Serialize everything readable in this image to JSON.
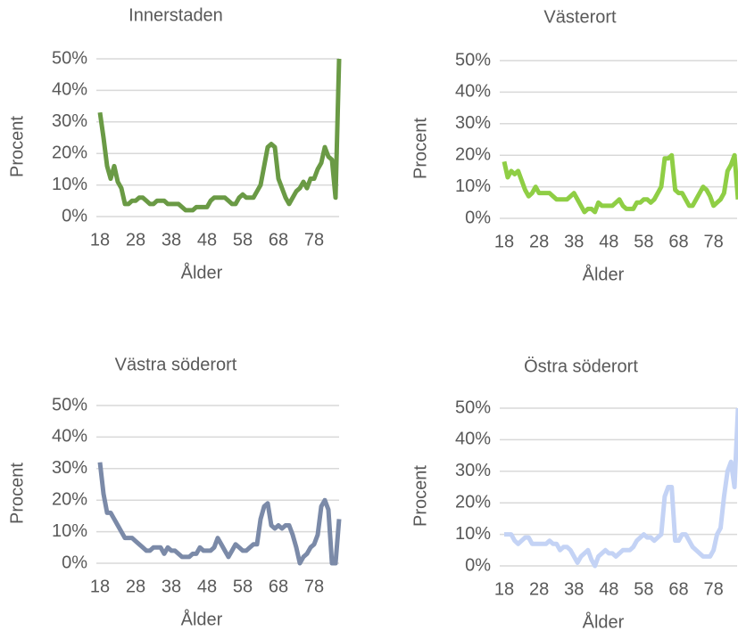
{
  "chart_data": [
    {
      "type": "line",
      "title": "Innerstaden",
      "x_label": "Ålder",
      "y_label": "Procent",
      "x": [
        18,
        19,
        20,
        21,
        22,
        23,
        24,
        25,
        26,
        27,
        28,
        29,
        30,
        31,
        32,
        33,
        34,
        35,
        36,
        37,
        38,
        39,
        40,
        41,
        42,
        43,
        44,
        45,
        46,
        47,
        48,
        49,
        50,
        51,
        52,
        53,
        54,
        55,
        56,
        57,
        58,
        59,
        60,
        61,
        62,
        63,
        64,
        65,
        66,
        67,
        68,
        69,
        70,
        71,
        72,
        73,
        74,
        75,
        76,
        77,
        78,
        79,
        80,
        81,
        82,
        83,
        84,
        85
      ],
      "series": [
        {
          "color": "#6a9a45",
          "values": [
            33,
            25,
            16,
            12,
            16,
            11,
            9,
            4,
            4,
            5,
            5,
            6,
            6,
            5,
            4,
            4,
            5,
            5,
            5,
            4,
            4,
            4,
            4,
            3,
            2,
            2,
            2,
            3,
            3,
            3,
            3,
            5,
            6,
            6,
            6,
            6,
            5,
            4,
            4,
            6,
            7,
            6,
            6,
            6,
            8,
            10,
            16,
            22,
            23,
            22,
            12,
            9,
            6,
            4,
            6,
            8,
            9,
            11,
            9,
            12,
            12,
            15,
            17,
            22,
            19,
            18,
            6,
            50
          ]
        }
      ],
      "xlim": [
        18,
        85
      ],
      "xticks": [
        18,
        28,
        38,
        48,
        58,
        68,
        78
      ],
      "ylim": [
        0,
        50
      ],
      "yticks": [
        {
          "value": 0,
          "label": "0%"
        },
        {
          "value": 10,
          "label": "10%"
        },
        {
          "value": 20,
          "label": "20%"
        },
        {
          "value": 30,
          "label": "30%"
        },
        {
          "value": 40,
          "label": "40%"
        },
        {
          "value": 50,
          "label": "50%"
        }
      ],
      "grid": true
    },
    {
      "type": "line",
      "title": "Västerort",
      "x_label": "Ålder",
      "y_label": "Procent",
      "x": [
        18,
        19,
        20,
        21,
        22,
        23,
        24,
        25,
        26,
        27,
        28,
        29,
        30,
        31,
        32,
        33,
        34,
        35,
        36,
        37,
        38,
        39,
        40,
        41,
        42,
        43,
        44,
        45,
        46,
        47,
        48,
        49,
        50,
        51,
        52,
        53,
        54,
        55,
        56,
        57,
        58,
        59,
        60,
        61,
        62,
        63,
        64,
        65,
        66,
        67,
        68,
        69,
        70,
        71,
        72,
        73,
        74,
        75,
        76,
        77,
        78,
        79,
        80,
        81,
        82,
        83,
        84,
        85
      ],
      "series": [
        {
          "color": "#8fce45",
          "values": [
            18,
            13,
            15,
            14,
            15,
            12,
            9,
            7,
            8,
            10,
            8,
            8,
            8,
            8,
            7,
            6,
            6,
            6,
            6,
            7,
            8,
            6,
            4,
            2,
            3,
            3,
            2,
            5,
            4,
            4,
            4,
            4,
            5,
            6,
            4,
            3,
            3,
            3,
            5,
            5,
            6,
            6,
            5,
            6,
            8,
            10,
            19,
            19,
            20,
            9,
            8,
            8,
            6,
            4,
            4,
            6,
            8,
            10,
            9,
            7,
            4,
            5,
            6,
            8,
            15,
            17,
            20,
            6
          ]
        }
      ],
      "xlim": [
        18,
        85
      ],
      "xticks": [
        18,
        28,
        38,
        48,
        58,
        68,
        78
      ],
      "ylim": [
        0,
        50
      ],
      "yticks": [
        {
          "value": 0,
          "label": "0%"
        },
        {
          "value": 10,
          "label": "10%"
        },
        {
          "value": 20,
          "label": "20%"
        },
        {
          "value": 30,
          "label": "30%"
        },
        {
          "value": 40,
          "label": "40%"
        },
        {
          "value": 50,
          "label": "50%"
        }
      ],
      "grid": true
    },
    {
      "type": "line",
      "title": "Västra söderort",
      "x_label": "Ålder",
      "y_label": "Procent",
      "x": [
        18,
        19,
        20,
        21,
        22,
        23,
        24,
        25,
        26,
        27,
        28,
        29,
        30,
        31,
        32,
        33,
        34,
        35,
        36,
        37,
        38,
        39,
        40,
        41,
        42,
        43,
        44,
        45,
        46,
        47,
        48,
        49,
        50,
        51,
        52,
        53,
        54,
        55,
        56,
        57,
        58,
        59,
        60,
        61,
        62,
        63,
        64,
        65,
        66,
        67,
        68,
        69,
        70,
        71,
        72,
        73,
        74,
        75,
        76,
        77,
        78,
        79,
        80,
        81,
        82,
        83,
        84,
        85
      ],
      "series": [
        {
          "color": "#7b8aa8",
          "values": [
            32,
            22,
            16,
            16,
            14,
            12,
            10,
            8,
            8,
            8,
            7,
            6,
            5,
            4,
            4,
            5,
            5,
            5,
            3,
            5,
            4,
            4,
            3,
            2,
            2,
            2,
            3,
            3,
            5,
            4,
            4,
            4,
            5,
            8,
            6,
            4,
            2,
            4,
            6,
            5,
            4,
            4,
            5,
            6,
            6,
            14,
            18,
            19,
            12,
            11,
            12,
            11,
            12,
            12,
            9,
            5,
            0,
            2,
            3,
            5,
            6,
            9,
            18,
            20,
            17,
            0,
            0,
            14
          ]
        }
      ],
      "xlim": [
        18,
        85
      ],
      "xticks": [
        18,
        28,
        38,
        48,
        58,
        68,
        78
      ],
      "ylim": [
        0,
        50
      ],
      "yticks": [
        {
          "value": 0,
          "label": "0%"
        },
        {
          "value": 10,
          "label": "10%"
        },
        {
          "value": 20,
          "label": "20%"
        },
        {
          "value": 30,
          "label": "30%"
        },
        {
          "value": 40,
          "label": "40%"
        },
        {
          "value": 50,
          "label": "50%"
        }
      ],
      "grid": true
    },
    {
      "type": "line",
      "title": "Östra söderort",
      "x_label": "Ålder",
      "y_label": "Procent",
      "x": [
        18,
        19,
        20,
        21,
        22,
        23,
        24,
        25,
        26,
        27,
        28,
        29,
        30,
        31,
        32,
        33,
        34,
        35,
        36,
        37,
        38,
        39,
        40,
        41,
        42,
        43,
        44,
        45,
        46,
        47,
        48,
        49,
        50,
        51,
        52,
        53,
        54,
        55,
        56,
        57,
        58,
        59,
        60,
        61,
        62,
        63,
        64,
        65,
        66,
        67,
        68,
        69,
        70,
        71,
        72,
        73,
        74,
        75,
        76,
        77,
        78,
        79,
        80,
        81,
        82,
        83,
        84,
        85
      ],
      "series": [
        {
          "color": "#c4d3f5",
          "values": [
            10,
            10,
            10,
            8,
            7,
            8,
            9,
            9,
            7,
            7,
            7,
            7,
            7,
            8,
            7,
            7,
            5,
            6,
            6,
            5,
            3,
            1,
            3,
            4,
            5,
            2,
            0,
            3,
            4,
            5,
            4,
            4,
            3,
            4,
            5,
            5,
            5,
            6,
            8,
            9,
            10,
            9,
            9,
            8,
            9,
            10,
            22,
            25,
            25,
            8,
            8,
            10,
            10,
            8,
            6,
            5,
            4,
            3,
            3,
            3,
            5,
            10,
            12,
            22,
            30,
            33,
            25,
            50
          ]
        }
      ],
      "xlim": [
        18,
        85
      ],
      "xticks": [
        18,
        28,
        38,
        48,
        58,
        68,
        78
      ],
      "ylim": [
        0,
        50
      ],
      "yticks": [
        {
          "value": 0,
          "label": "0%"
        },
        {
          "value": 10,
          "label": "10%"
        },
        {
          "value": 20,
          "label": "20%"
        },
        {
          "value": 30,
          "label": "30%"
        },
        {
          "value": 40,
          "label": "40%"
        },
        {
          "value": 50,
          "label": "50%"
        }
      ],
      "grid": true
    }
  ]
}
